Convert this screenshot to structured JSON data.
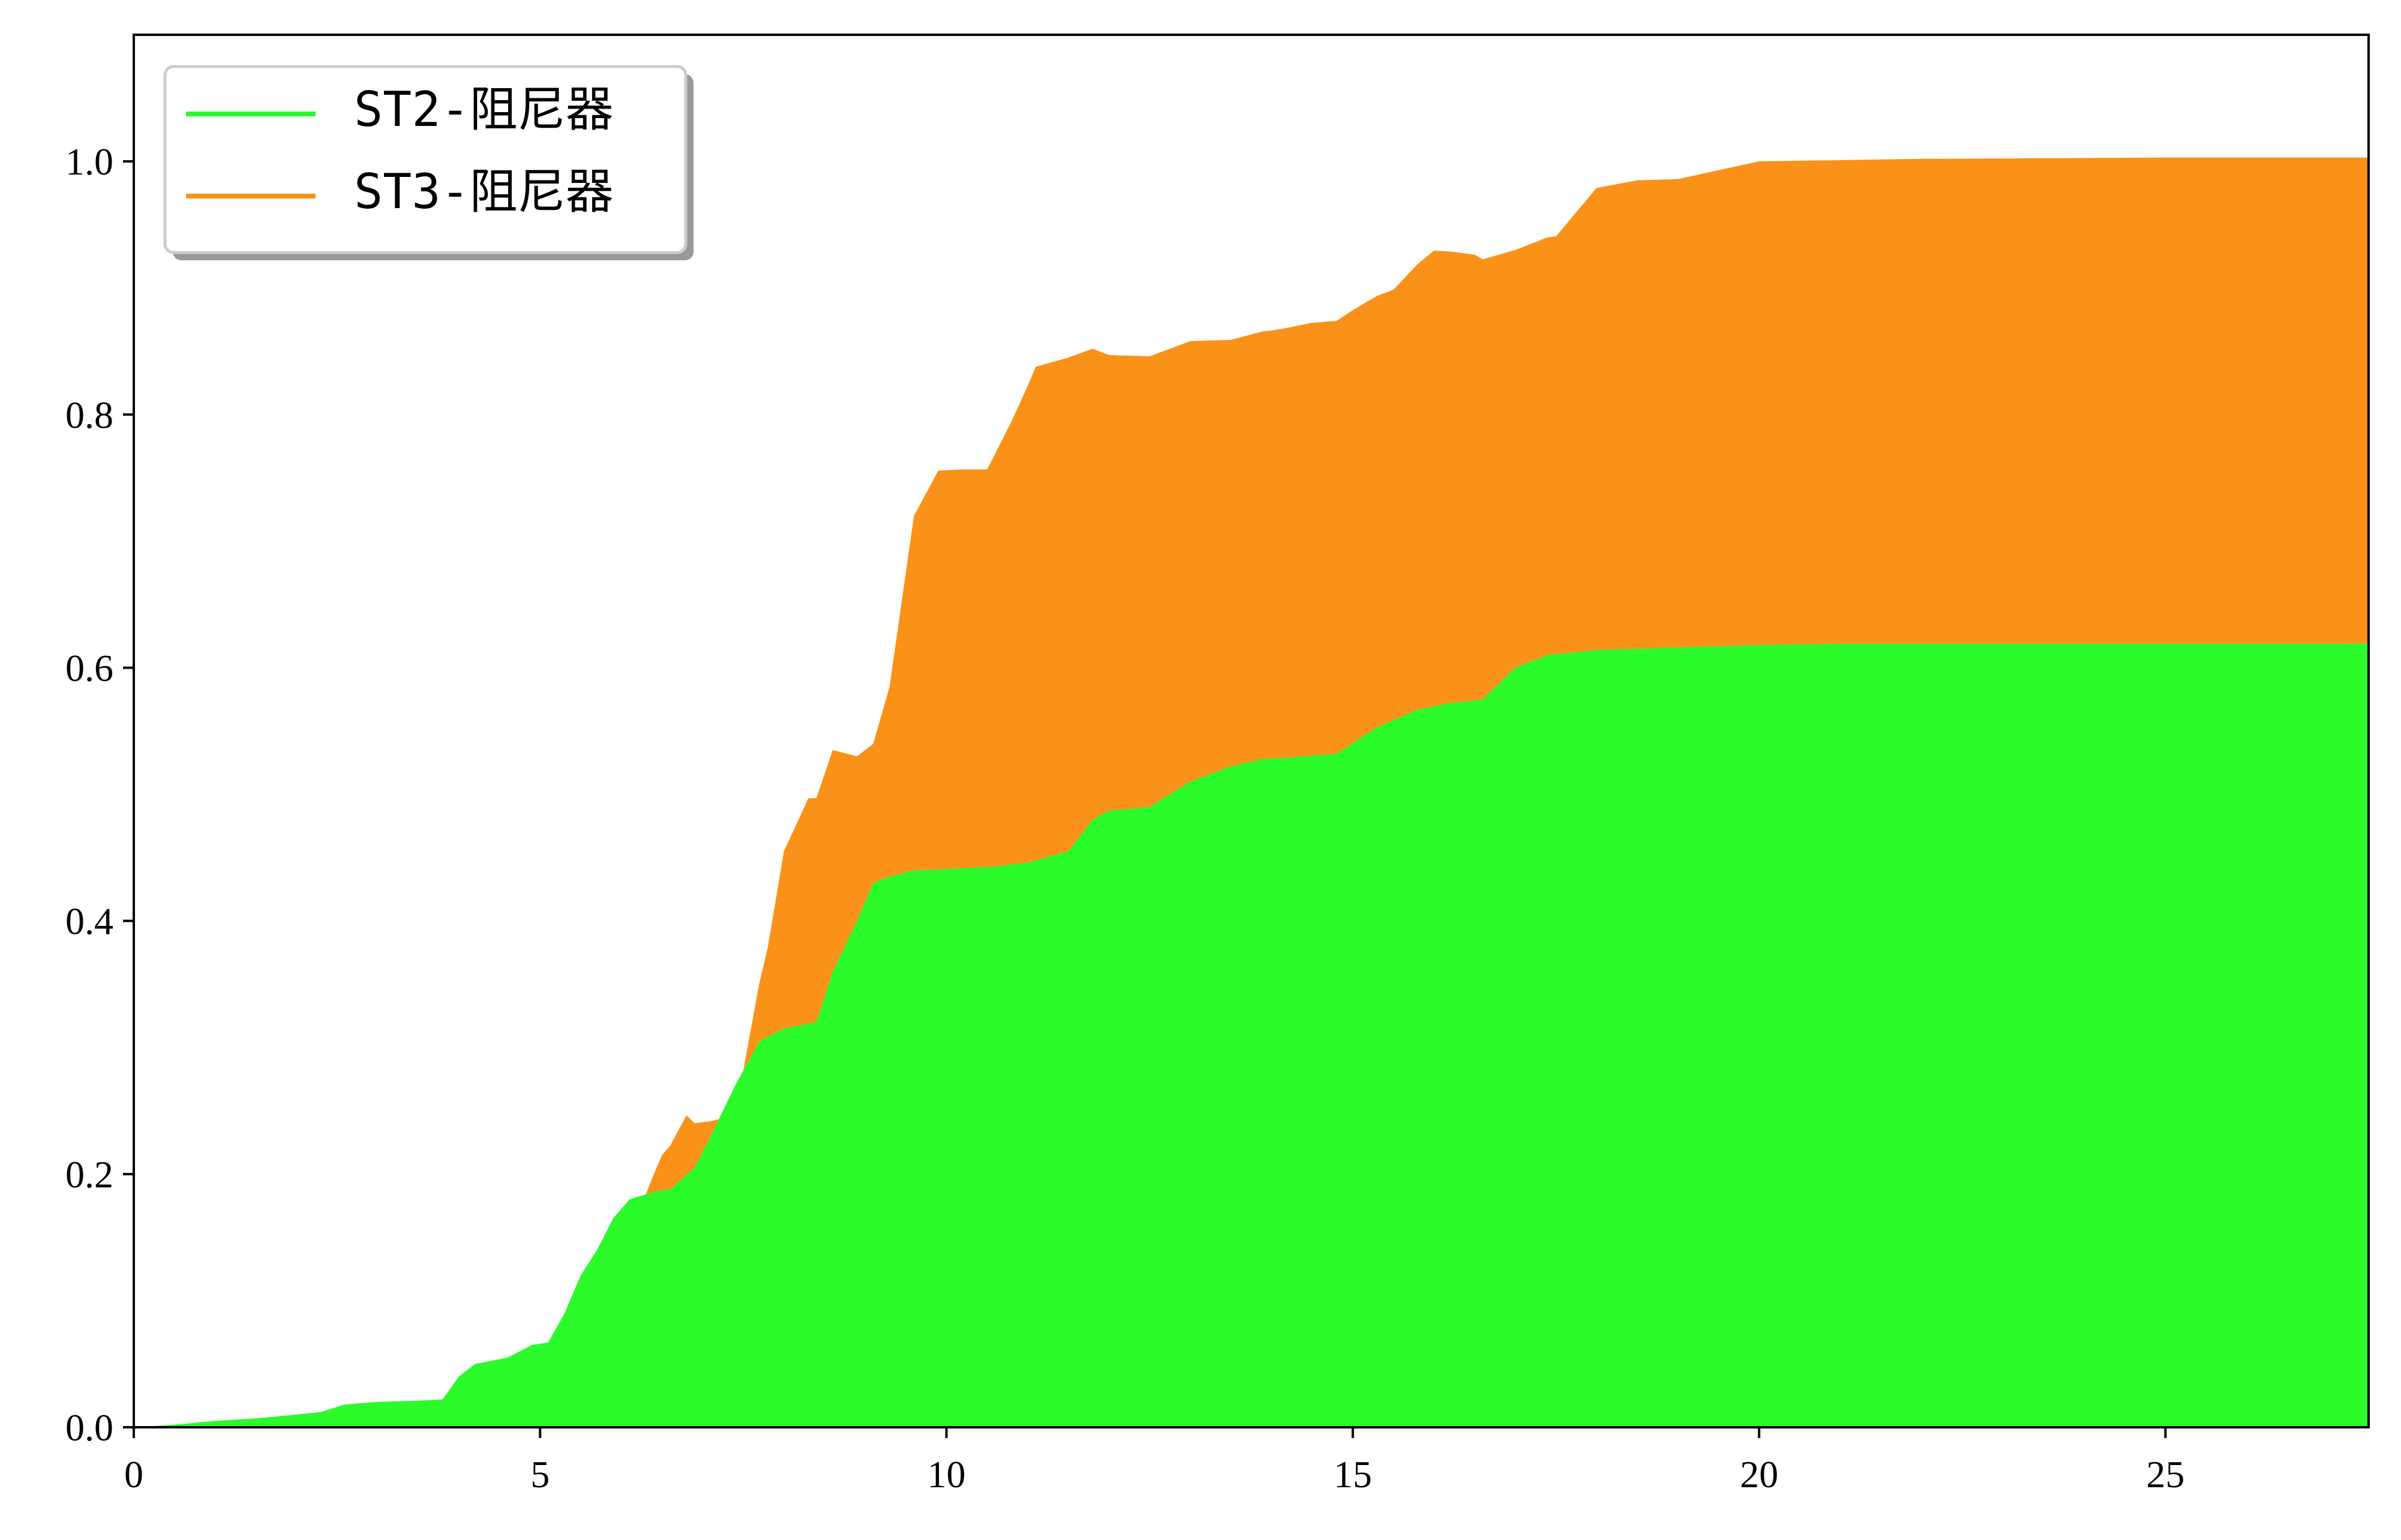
{
  "chart_data": {
    "type": "area",
    "stacked": true,
    "xlim": [
      0,
      27.5
    ],
    "ylim": [
      0,
      1.1
    ],
    "xticks": [
      0,
      5,
      10,
      15,
      20,
      25
    ],
    "yticks": [
      0.0,
      0.2,
      0.4,
      0.6,
      0.8,
      1.0
    ],
    "xtick_labels": [
      "0",
      "5",
      "10",
      "15",
      "20",
      "25"
    ],
    "ytick_labels": [
      "0.0",
      "0.2",
      "0.4",
      "0.6",
      "0.8",
      "1.0"
    ],
    "grid": false,
    "legend": {
      "placement": "top-left",
      "shadow": true
    },
    "series": [
      {
        "name": "ST2-阻尼器",
        "color": "#2bfa2b",
        "x": [
          0,
          0.5,
          1.0,
          1.5,
          2.0,
          2.3,
          2.6,
          3.0,
          3.5,
          3.8,
          4.0,
          4.2,
          4.6,
          4.9,
          5.1,
          5.3,
          5.5,
          5.7,
          5.9,
          6.1,
          6.4,
          6.6,
          6.9,
          7.1,
          7.4,
          7.7,
          8.0,
          8.4,
          8.6,
          8.9,
          9.1,
          9.3,
          9.6,
          10.0,
          10.6,
          11.0,
          11.5,
          11.8,
          12.0,
          12.5,
          13.0,
          13.5,
          13.9,
          14.2,
          14.8,
          15.3,
          15.8,
          16.2,
          16.6,
          17.0,
          17.4,
          18.0,
          19.0,
          20.0,
          21.0,
          23.0,
          25.0,
          27.5
        ],
        "values": [
          0.0,
          0.002,
          0.005,
          0.007,
          0.01,
          0.012,
          0.018,
          0.02,
          0.021,
          0.022,
          0.04,
          0.05,
          0.055,
          0.065,
          0.067,
          0.09,
          0.12,
          0.14,
          0.165,
          0.18,
          0.186,
          0.188,
          0.205,
          0.23,
          0.27,
          0.305,
          0.315,
          0.32,
          0.36,
          0.4,
          0.43,
          0.435,
          0.44,
          0.441,
          0.443,
          0.446,
          0.455,
          0.48,
          0.487,
          0.49,
          0.51,
          0.522,
          0.528,
          0.529,
          0.532,
          0.553,
          0.567,
          0.572,
          0.575,
          0.6,
          0.61,
          0.614,
          0.616,
          0.618,
          0.619,
          0.619,
          0.619,
          0.619
        ]
      },
      {
        "name": "ST3-阻尼器",
        "color": "#fa9119",
        "x": [
          0,
          5.0,
          6.0,
          6.3,
          6.5,
          6.8,
          7.2,
          7.5,
          7.8,
          8.0,
          8.3,
          8.6,
          8.9,
          9.1,
          9.3,
          9.6,
          9.9,
          10.2,
          10.5,
          10.8,
          11.1,
          11.5,
          12.0,
          12.5,
          13.0,
          13.5,
          14.0,
          14.5,
          15.0,
          15.5,
          16.0,
          16.5,
          17.0,
          17.5,
          18.0,
          18.5,
          19.0,
          19.5,
          20.0,
          21.0,
          22.0,
          25.0,
          27.5
        ],
        "values": [
          0.0,
          0.0,
          0.0,
          0.0,
          0.028,
          0.047,
          0.0,
          0.0,
          0.07,
          0.14,
          0.178,
          0.175,
          0.13,
          0.11,
          0.15,
          0.28,
          0.315,
          0.315,
          0.314,
          0.35,
          0.39,
          0.39,
          0.36,
          0.356,
          0.348,
          0.337,
          0.338,
          0.342,
          0.342,
          0.34,
          0.36,
          0.352,
          0.33,
          0.33,
          0.365,
          0.37,
          0.37,
          0.376,
          0.382,
          0.382,
          0.383,
          0.384,
          0.384
        ]
      }
    ]
  }
}
